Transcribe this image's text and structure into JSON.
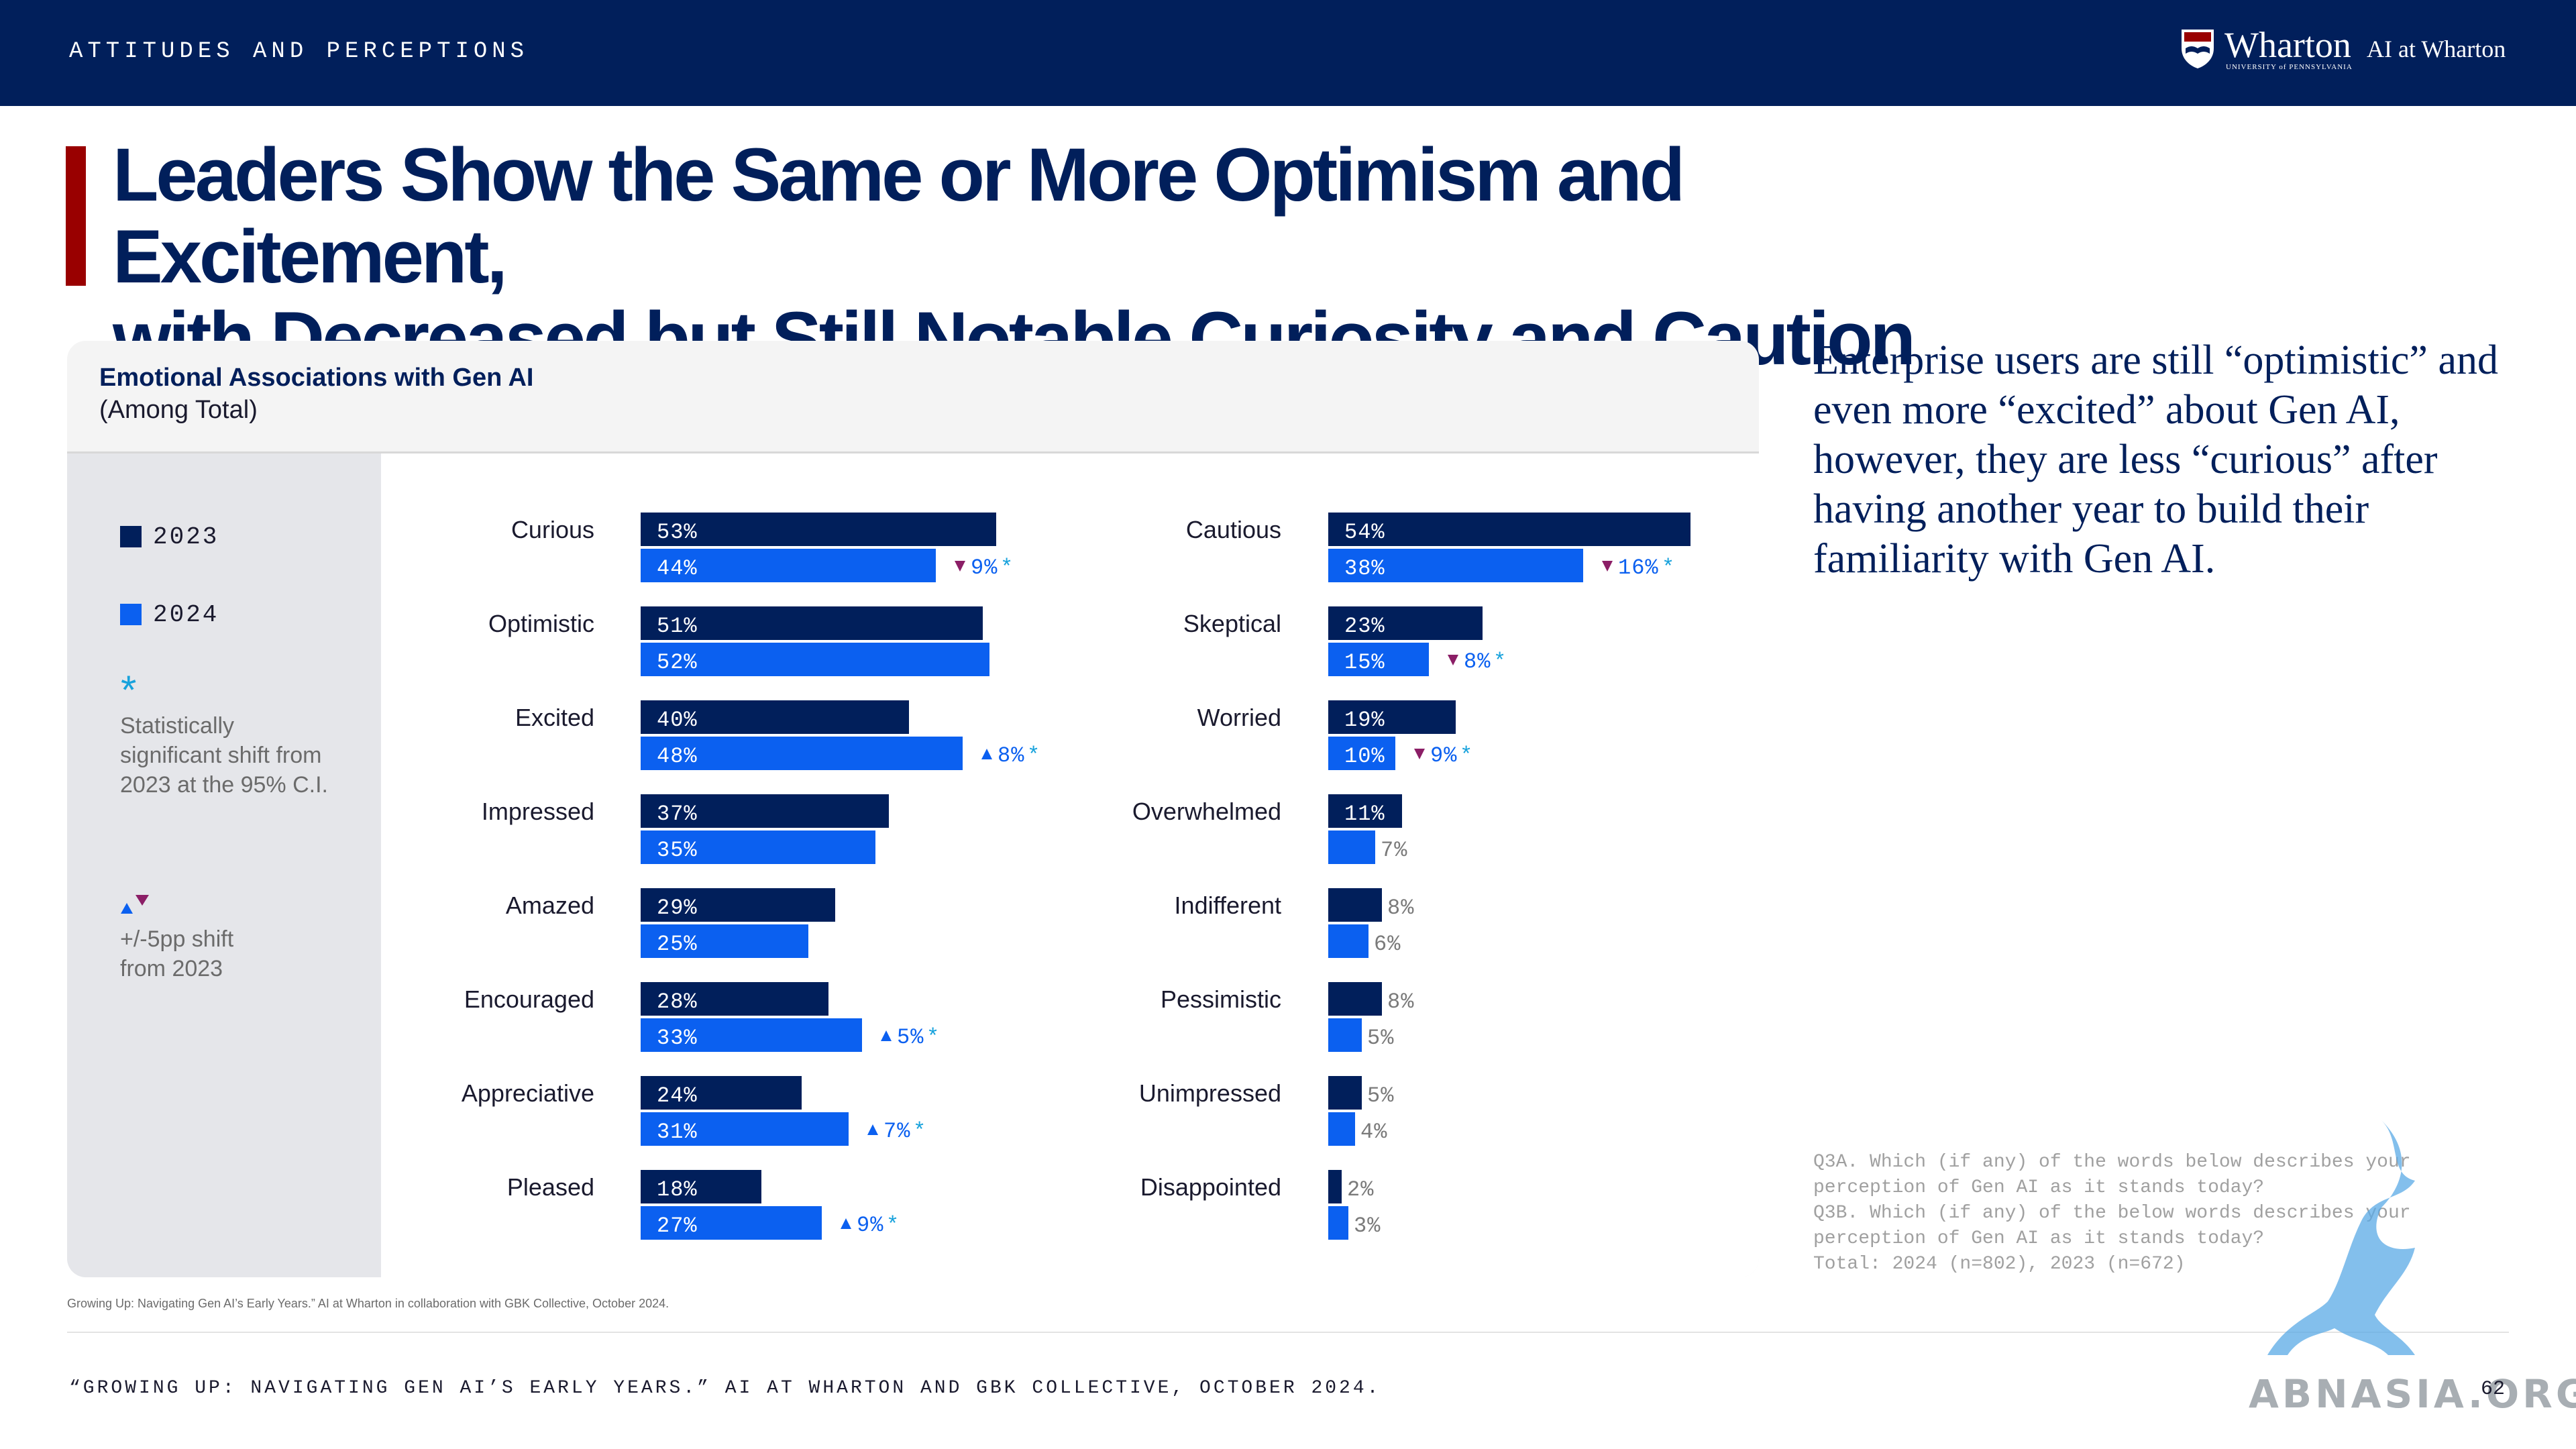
{
  "header": {
    "section_label": "ATTITUDES AND PERCEPTIONS",
    "logo_wharton": "Wharton",
    "logo_university": "UNIVERSITY of PENNSYLVANIA",
    "logo_ai": "AI at Wharton"
  },
  "title_line1": "Leaders Show the Same or More Optimism and Excitement,",
  "title_line2": "with Decreased but Still Notable Curiosity and Caution",
  "legend": {
    "label_2023": "2023",
    "label_2024": "2024",
    "star_glyph": "*",
    "star_note": "Statistically significant shift from 2023 at the 95% C.I.",
    "shift_note": "+/-5pp shift from 2023"
  },
  "colors": {
    "y2023": "#011f5b",
    "y2024": "#0b60f0",
    "up_arrow": "#0b60f0",
    "down_arrow": "#8b1e66",
    "star": "#17a2dc",
    "title_bar": "#990000"
  },
  "chart_data": {
    "type": "bar",
    "orientation": "horizontal",
    "title": "Emotional Associations with Gen AI",
    "subtitle": "(Among Total)",
    "series_names": [
      "2023",
      "2024"
    ],
    "panels": [
      {
        "categories": [
          "Curious",
          "Optimistic",
          "Excited",
          "Impressed",
          "Amazed",
          "Encouraged",
          "Appreciative",
          "Pleased"
        ],
        "series": [
          {
            "name": "2023",
            "values": [
              53,
              51,
              40,
              37,
              29,
              28,
              24,
              18
            ]
          },
          {
            "name": "2024",
            "values": [
              44,
              52,
              48,
              35,
              25,
              33,
              31,
              27
            ]
          }
        ],
        "shifts": [
          {
            "category": "Curious",
            "direction": "down",
            "label": "9%",
            "star": "*"
          },
          {
            "category": "Excited",
            "direction": "up",
            "label": "8%",
            "star": "*"
          },
          {
            "category": "Encouraged",
            "direction": "up",
            "label": "5%",
            "star": "*"
          },
          {
            "category": "Appreciative",
            "direction": "up",
            "label": "7%",
            "star": "*"
          },
          {
            "category": "Pleased",
            "direction": "up",
            "label": "9%",
            "star": "*"
          }
        ]
      },
      {
        "categories": [
          "Cautious",
          "Skeptical",
          "Worried",
          "Overwhelmed",
          "Indifferent",
          "Pessimistic",
          "Unimpressed",
          "Disappointed"
        ],
        "series": [
          {
            "name": "2023",
            "values": [
              54,
              23,
              19,
              11,
              8,
              8,
              5,
              2
            ]
          },
          {
            "name": "2024",
            "values": [
              38,
              15,
              10,
              7,
              6,
              5,
              4,
              3
            ]
          }
        ],
        "shifts": [
          {
            "category": "Cautious",
            "direction": "down",
            "label": "16%",
            "star": "*"
          },
          {
            "category": "Skeptical",
            "direction": "down",
            "label": "8%",
            "star": "*"
          },
          {
            "category": "Worried",
            "direction": "down",
            "label": "9%",
            "star": "*"
          }
        ]
      }
    ]
  },
  "side_text": "Enterprise users are still “optimistic” and even more “excited” about Gen AI, however, they are less “curious” after having another year to build their familiarity with Gen AI.",
  "question_note": "Q3A. Which (if any) of the words below describes your perception of Gen AI as it stands today?\nQ3B. Which (if any) of the below words describes your perception of Gen AI as it stands today?\nTotal: 2024 (n=802), 2023 (n=672)",
  "source_small": "Growing Up: Navigating Gen AI’s Early Years.” AI at Wharton in collaboration with GBK Collective, October 2024.",
  "footer": "“GROWING UP: NAVIGATING GEN AI’S EARLY YEARS.” AI AT WHARTON AND GBK COLLECTIVE, OCTOBER 2024.",
  "page_number": "62",
  "watermark": "ABNASIA.ORG"
}
